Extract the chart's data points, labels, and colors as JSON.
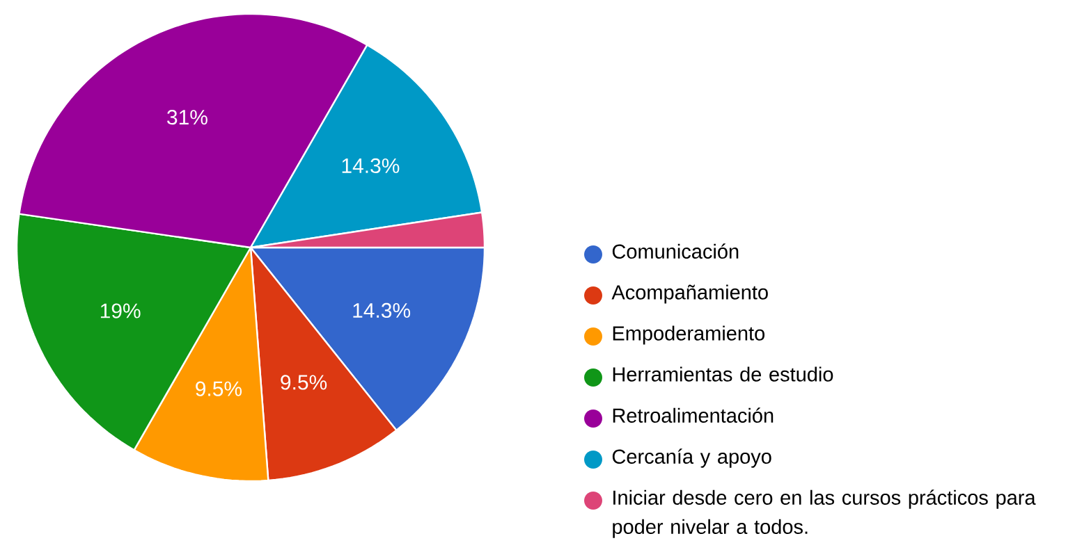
{
  "chart_data": {
    "type": "pie",
    "categories": [
      "Comunicación",
      "Acompañamiento",
      "Empoderamiento",
      "Herramientas de estudio",
      "Retroalimentación",
      "Cercanía y apoyo",
      "Iniciar desde cero en las cursos prácticos para poder nivelar a todos."
    ],
    "values": [
      14.3,
      9.5,
      9.5,
      19,
      31,
      14.3,
      2.4
    ],
    "colors": [
      "#3366cc",
      "#dc3912",
      "#ff9900",
      "#109618",
      "#990099",
      "#0099c6",
      "#dd4477"
    ],
    "value_labels": [
      "14.3%",
      "9.5%",
      "9.5%",
      "19%",
      "31%",
      "14.3%",
      null
    ],
    "legend": "right"
  }
}
